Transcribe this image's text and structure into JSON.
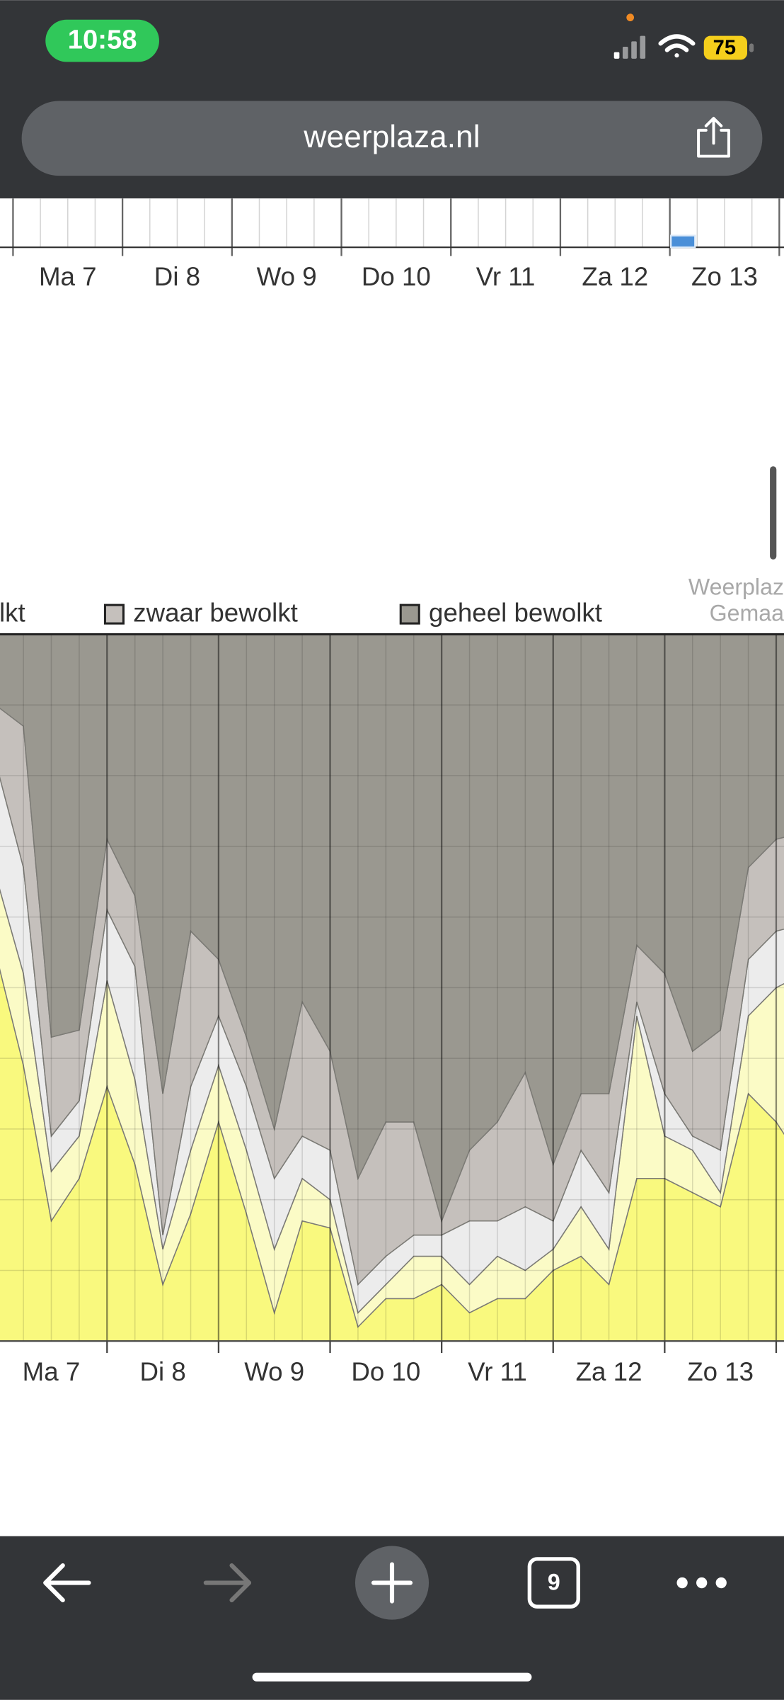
{
  "status_bar": {
    "time": "10:58",
    "battery": "75"
  },
  "browser": {
    "url": "weerplaza.nl",
    "tab_count": "9"
  },
  "watermark": [
    "Weerplaz",
    "Gemaa"
  ],
  "chart_data": [
    {
      "type": "bar",
      "x": [
        6
      ],
      "values": [
        1.2
      ],
      "color": "#4a8fd8",
      "xlim": [
        -0.119,
        7.043
      ],
      "ylim": [
        0,
        5
      ],
      "xticks": [
        {
          "value": 0.5,
          "label": "Ma 7"
        },
        {
          "value": 1.5,
          "label": "Di 8"
        },
        {
          "value": 2.5,
          "label": "Wo 9"
        },
        {
          "value": 3.5,
          "label": "Do 10"
        },
        {
          "value": 4.5,
          "label": "Vr 11"
        },
        {
          "value": 5.5,
          "label": "Za 12"
        },
        {
          "value": 6.5,
          "label": "Zo 13"
        }
      ]
    },
    {
      "type": "area",
      "stacked": true,
      "grid": true,
      "x": [
        0,
        0.25,
        0.5,
        0.75,
        1,
        1.25,
        1.5,
        1.75,
        2,
        2.25,
        2.5,
        2.75,
        3,
        3.25,
        3.5,
        3.75,
        4,
        4.25,
        4.5,
        4.75,
        5,
        5.25,
        5.5,
        5.75,
        6,
        6.25,
        6.5,
        6.75,
        7,
        7.25
      ],
      "xlim": [
        0.04,
        7.07
      ],
      "ylim": [
        0,
        100
      ],
      "yticks": [
        0,
        10,
        20,
        30,
        40,
        50,
        60,
        70,
        80,
        90,
        100
      ],
      "xticks": [
        {
          "value": 0.5,
          "label": "Ma 7"
        },
        {
          "value": 1.5,
          "label": "Di 8"
        },
        {
          "value": 2.5,
          "label": "Wo 9"
        },
        {
          "value": 3.5,
          "label": "Do 10"
        },
        {
          "value": 4.5,
          "label": "Vr 11"
        },
        {
          "value": 5.5,
          "label": "Za 12"
        },
        {
          "value": 6.5,
          "label": "Zo 13"
        }
      ],
      "series": [
        {
          "color": "#f9f97e",
          "values": [
            55,
            39,
            17,
            23,
            36,
            25,
            8,
            18,
            31,
            18,
            4,
            17,
            16,
            2,
            6,
            6,
            8,
            4,
            6,
            6,
            10,
            12,
            8,
            23,
            23,
            21,
            19,
            35,
            31,
            25
          ]
        },
        {
          "color": "#fbfbc6",
          "values": [
            11,
            13,
            7,
            6,
            15,
            12,
            5,
            9,
            8,
            9,
            9,
            6,
            4,
            2,
            2,
            6,
            4,
            4,
            6,
            4,
            3,
            7,
            5,
            23,
            6,
            6,
            2,
            11,
            19,
            27
          ]
        },
        {
          "name": "olkt",
          "color": "#ececec",
          "values": [
            16,
            15,
            5,
            5,
            10,
            16,
            2,
            9,
            7,
            9,
            10,
            6,
            7,
            4,
            4,
            3,
            3,
            9,
            5,
            9,
            4,
            8,
            8,
            2,
            6,
            2,
            6,
            8,
            8,
            7
          ]
        },
        {
          "name": "zwaar bewolkt",
          "color": "#c5c0bc",
          "values": [
            8,
            20,
            14,
            10,
            10,
            10,
            20,
            22,
            8,
            7,
            7,
            19,
            14,
            15,
            19,
            16,
            2,
            10,
            14,
            19,
            8,
            8,
            14,
            8,
            17,
            12,
            17,
            13,
            13,
            13
          ]
        },
        {
          "name": "geheel bewolkt",
          "color": "#9a9890",
          "values": [
            10,
            13,
            57,
            56,
            29,
            37,
            65,
            42,
            46,
            57,
            70,
            52,
            59,
            77,
            69,
            69,
            83,
            73,
            69,
            62,
            75,
            65,
            65,
            44,
            48,
            59,
            56,
            33,
            29,
            28
          ]
        }
      ]
    }
  ]
}
